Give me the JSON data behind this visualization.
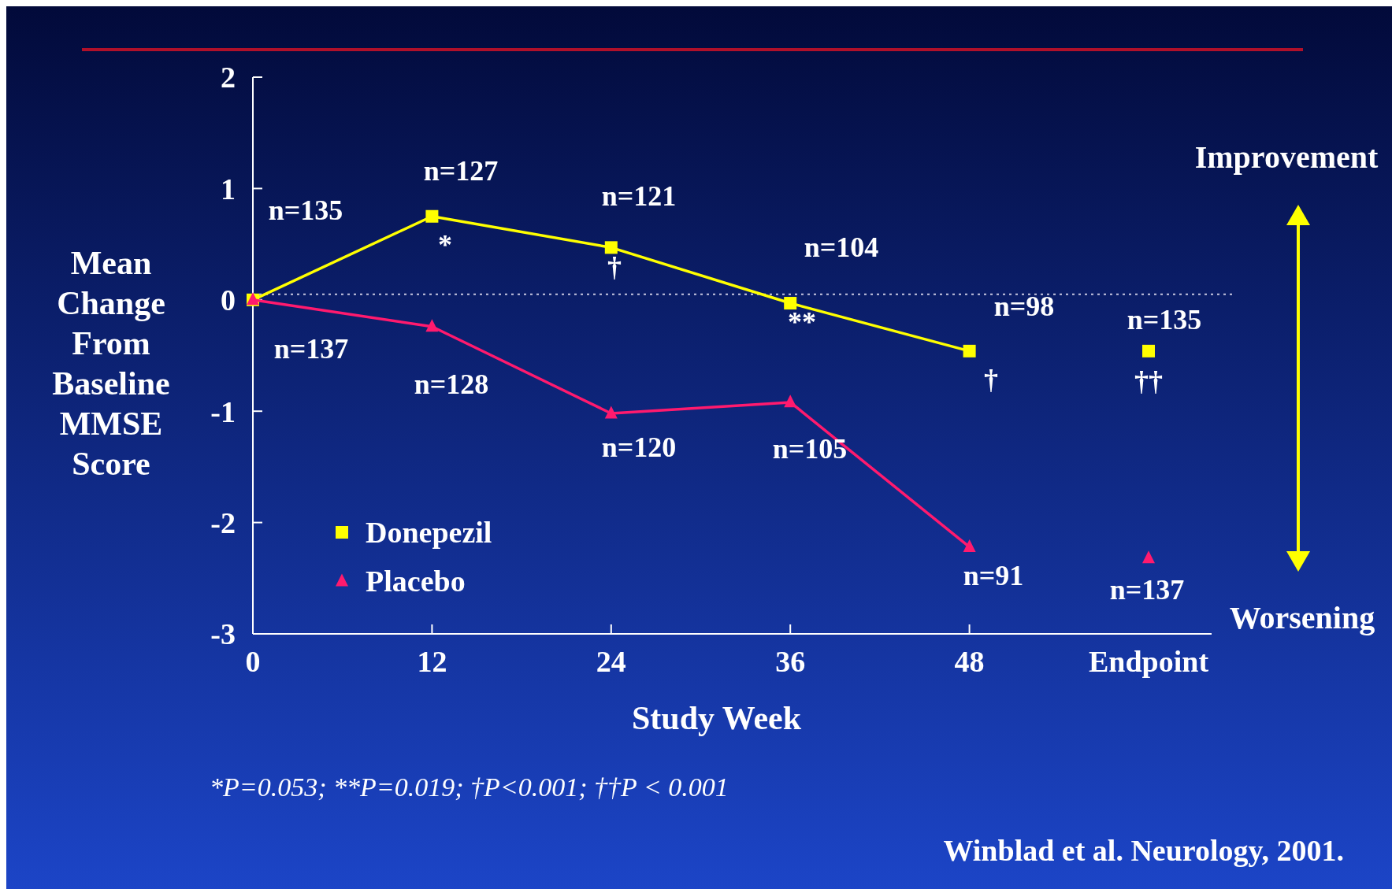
{
  "chart_data": {
    "type": "line",
    "xlabel": "Study Week",
    "ylabel": "Mean Change From Baseline MMSE Score",
    "categories": [
      "0",
      "12",
      "24",
      "36",
      "48",
      "Endpoint"
    ],
    "ylim": [
      -3,
      2
    ],
    "yticks": [
      -3,
      -2,
      -1,
      0,
      1,
      2
    ],
    "legend": "bottom left",
    "line_style": "solid",
    "series": [
      {
        "name": "Donepezil",
        "color": "#ffff00",
        "marker": "square",
        "values": [
          0,
          0.75,
          0.47,
          -0.03,
          -0.46,
          null
        ]
      },
      {
        "name": "Placebo",
        "color": "#ff1a6e",
        "marker": "triangle",
        "values": [
          0,
          -0.24,
          -1.02,
          -0.92,
          -2.22,
          null
        ]
      },
      {
        "type": "scatter",
        "color": "#ffff00",
        "marker": "square",
        "values": [
          null,
          null,
          null,
          null,
          null,
          -0.46
        ]
      },
      {
        "type": "scatter",
        "color": "#ff1a6e",
        "marker": "triangle",
        "values": [
          null,
          null,
          null,
          null,
          null,
          -2.32
        ]
      }
    ],
    "ref_lines": [
      {
        "axis": "y",
        "value": 0.05,
        "color": "#c8c8e0",
        "line_style": "dotted"
      }
    ],
    "annotations": [
      "Improvement",
      "Worsening",
      "*P=0.053; **P=0.019;  †P<0.001; ††P < 0.001",
      "Winblad et al. Neurology, 2001.",
      "n=135",
      "n=127",
      "*",
      "n=121",
      "†",
      "n=104",
      "**",
      "n=98",
      "†",
      "n=135",
      "††",
      "n=137",
      "n=128",
      "n=120",
      "n=105",
      "n=91",
      "n=137"
    ]
  }
}
